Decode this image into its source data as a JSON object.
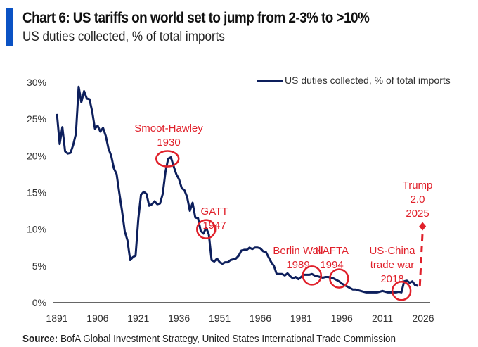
{
  "header": {
    "title": "Chart 6: US tariffs on world set to jump from 2-3% to >10%",
    "subtitle": "US duties collected, % of total imports"
  },
  "source": {
    "label": "Source:",
    "text": "BofA Global Investment Strategy, United States International Trade Commission"
  },
  "colors": {
    "line": "#0d1f5c",
    "annotation": "#e0202a",
    "accent_bar": "#0a52c4",
    "axis": "#666666"
  },
  "chart_data": {
    "type": "line",
    "title": "Chart 6: US tariffs on world set to jump from 2-3% to >10%",
    "ylabel": "",
    "xlabel": "",
    "xlim": [
      1891,
      2026
    ],
    "ylim": [
      0,
      30
    ],
    "x_ticks": [
      "1891",
      "1906",
      "1921",
      "1936",
      "1951",
      "1966",
      "1981",
      "1996",
      "2011",
      "2026"
    ],
    "y_ticks": [
      "0%",
      "5%",
      "10%",
      "15%",
      "20%",
      "25%",
      "30%"
    ],
    "grid": false,
    "legend": {
      "position": "top-right",
      "entries": [
        "US duties collected, % of total imports"
      ]
    },
    "series": [
      {
        "name": "US duties collected, % of total imports",
        "start_year": 1891,
        "values": [
          25.7,
          21.6,
          23.9,
          20.6,
          20.3,
          20.4,
          21.5,
          23.0,
          29.4,
          27.3,
          28.8,
          27.8,
          27.7,
          26.0,
          23.7,
          24.1,
          23.3,
          23.8,
          22.7,
          21.0,
          20.0,
          18.3,
          17.5,
          14.9,
          12.5,
          9.7,
          8.5,
          5.8,
          6.2,
          6.4,
          11.4,
          14.7,
          15.1,
          14.8,
          13.2,
          13.4,
          13.8,
          13.4,
          13.5,
          14.8,
          17.8,
          19.6,
          19.8,
          18.6,
          17.5,
          16.8,
          15.6,
          15.3,
          14.4,
          12.5,
          13.6,
          11.6,
          11.5,
          9.8,
          9.4,
          10.2,
          9.3,
          5.8,
          5.6,
          6.0,
          5.5,
          5.3,
          5.5,
          5.5,
          5.8,
          5.9,
          6.0,
          6.4,
          7.1,
          7.2,
          7.2,
          7.5,
          7.3,
          7.5,
          7.5,
          7.4,
          7.0,
          6.9,
          6.2,
          5.5,
          5.0,
          3.9,
          3.9,
          3.9,
          3.7,
          4.0,
          3.6,
          3.3,
          3.5,
          3.2,
          3.5,
          3.8,
          3.8,
          3.8,
          3.9,
          3.7,
          3.6,
          3.5,
          3.4,
          3.5,
          3.5,
          3.4,
          3.3,
          3.1,
          2.9,
          2.6,
          2.4,
          2.2,
          2.0,
          1.8,
          1.8,
          1.7,
          1.6,
          1.5,
          1.4,
          1.4,
          1.4,
          1.4,
          1.4,
          1.5,
          1.6,
          1.5,
          1.4,
          1.4,
          1.4,
          1.4,
          1.5,
          1.4,
          2.9,
          3.0,
          2.7,
          2.9,
          2.4,
          2.3
        ]
      }
    ],
    "projection": {
      "from": [
        2024,
        2.3
      ],
      "to": [
        2025,
        10.4
      ]
    },
    "annotations": [
      {
        "lines": [
          "Smoot-Hawley",
          "1930"
        ],
        "year": 1932,
        "value": 19.6
      },
      {
        "lines": [
          "GATT",
          "1947"
        ],
        "year": 1946,
        "value": 10.0
      },
      {
        "lines": [
          "Berlin Wall",
          "1989"
        ],
        "year": 1985,
        "value": 3.7
      },
      {
        "lines": [
          "NAFTA",
          "1994"
        ],
        "year": 1995,
        "value": 3.3
      },
      {
        "lines": [
          "US-China",
          "trade war",
          "2018"
        ],
        "year": 2018,
        "value": 1.6
      },
      {
        "lines": [
          "Trump",
          "2.0",
          "2025"
        ],
        "year": 2025,
        "value": 10.4
      }
    ]
  }
}
